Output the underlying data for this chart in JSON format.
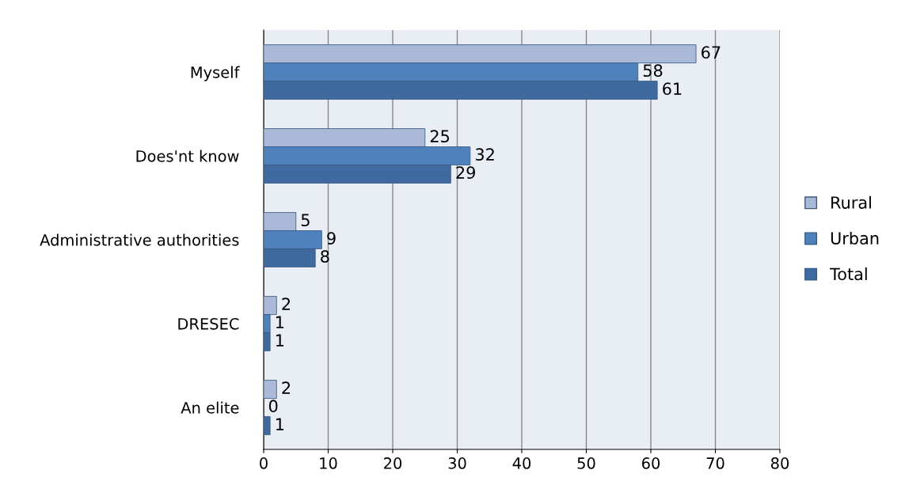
{
  "chart_data": {
    "type": "bar",
    "orientation": "horizontal",
    "categories": [
      "Myself",
      "Does'nt know",
      "Administrative authorities",
      "DRESEC",
      "An elite"
    ],
    "series": [
      {
        "name": "Rural",
        "color": "#aab9d8",
        "values": [
          67,
          25,
          5,
          2,
          2
        ]
      },
      {
        "name": "Urban",
        "color": "#4f81bd",
        "values": [
          58,
          32,
          9,
          1,
          0
        ]
      },
      {
        "name": "Total",
        "color": "#3e6aa0",
        "values": [
          61,
          29,
          8,
          1,
          1
        ]
      }
    ],
    "xlim": [
      0,
      80
    ],
    "xticks": [
      0,
      10,
      20,
      30,
      40,
      50,
      60,
      70,
      80
    ],
    "grid": "x",
    "legend": "right",
    "data_labels": true
  }
}
